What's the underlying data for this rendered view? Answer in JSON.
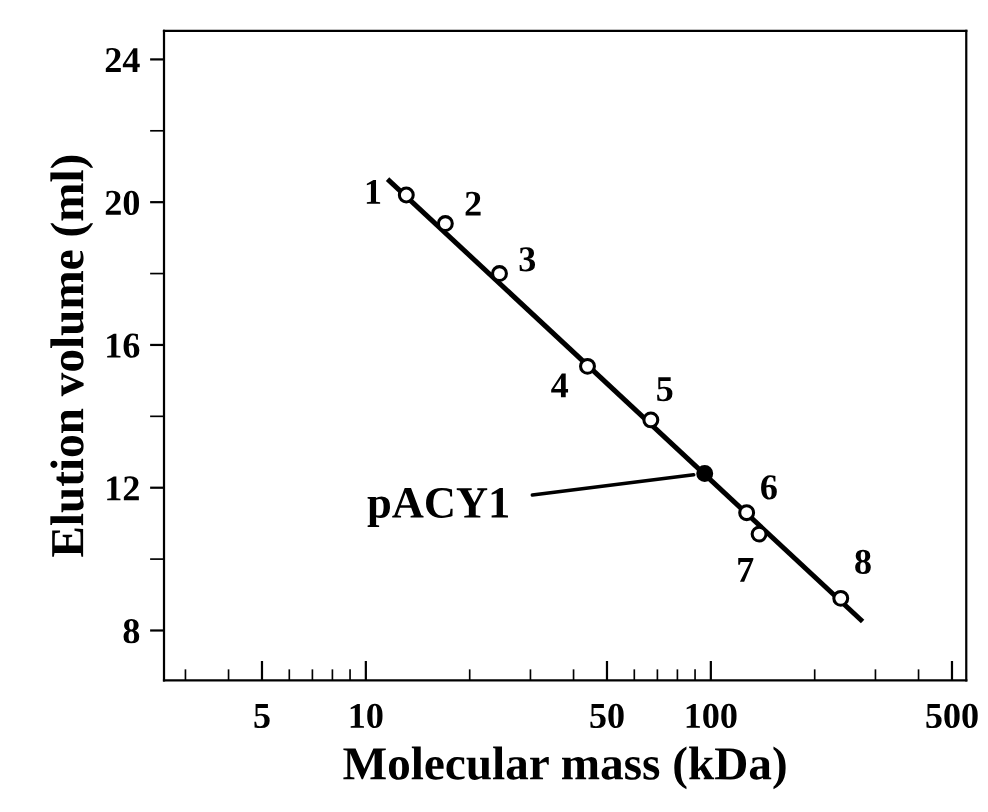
{
  "chart_data": {
    "type": "scatter",
    "xlabel": "Molecular mass (kDa)",
    "ylabel": "Elution volume (ml)",
    "log": "x",
    "marker": "circle",
    "grid": false,
    "legend": false,
    "xlim": [
      2.6,
      550
    ],
    "ylim": [
      6.6,
      24.8
    ],
    "xticks": [
      {
        "value": 3,
        "label": null
      },
      {
        "value": 4,
        "label": null
      },
      5,
      {
        "value": 6,
        "label": null
      },
      {
        "value": 7,
        "label": null
      },
      {
        "value": 8,
        "label": null
      },
      {
        "value": 9,
        "label": null
      },
      10,
      {
        "value": 20,
        "label": null
      },
      {
        "value": 30,
        "label": null
      },
      {
        "value": 40,
        "label": null
      },
      50,
      {
        "value": 60,
        "label": null
      },
      {
        "value": 70,
        "label": null
      },
      {
        "value": 80,
        "label": null
      },
      {
        "value": 90,
        "label": null
      },
      100,
      {
        "value": 200,
        "label": null
      },
      {
        "value": 300,
        "label": null
      },
      {
        "value": 400,
        "label": null
      },
      500
    ],
    "yticks": [
      8,
      {
        "value": 10,
        "label": null
      },
      12,
      {
        "value": 14,
        "label": null
      },
      16,
      {
        "value": 18,
        "label": null
      },
      20,
      {
        "value": 22,
        "label": null
      },
      24
    ],
    "series": [
      {
        "color": "#ffffff",
        "x": [
          13.1,
          17.0,
          24.4,
          43.9,
          67,
          127,
          138,
          238
        ],
        "values": [
          20.2,
          19.4,
          18.0,
          15.4,
          13.9,
          11.3,
          10.7,
          8.9
        ]
      },
      {
        "color": "#000000",
        "x": [
          96
        ],
        "values": [
          12.4
        ]
      },
      {
        "type": "line",
        "color": "#000000",
        "marker": "none",
        "x": [
          11.7,
          272
        ],
        "values": [
          20.6,
          8.3
        ]
      }
    ],
    "annotations": [
      {
        "text": "1",
        "x": 13.1,
        "y": 20.2
      },
      {
        "text": "2",
        "x": 17.0,
        "y": 19.4
      },
      {
        "text": "3",
        "x": 24.4,
        "y": 18.0
      },
      {
        "text": "4",
        "x": 43.9,
        "y": 15.4
      },
      {
        "text": "5",
        "x": 67,
        "y": 13.9
      },
      {
        "text": "6",
        "x": 127,
        "y": 11.3
      },
      {
        "text": "7",
        "x": 138,
        "y": 10.7
      },
      {
        "text": "8",
        "x": 238,
        "y": 8.9
      },
      {
        "text": "pACY1",
        "x": 96,
        "y": 12.4
      }
    ]
  }
}
